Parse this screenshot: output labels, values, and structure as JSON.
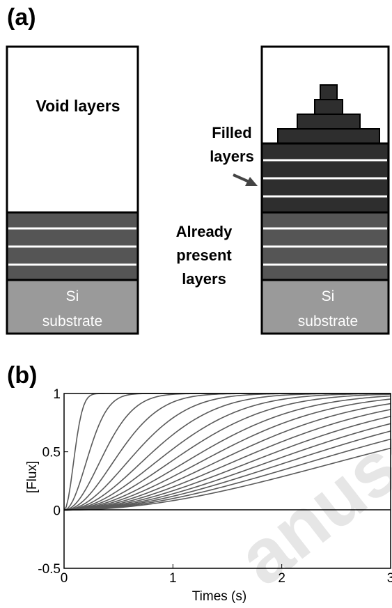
{
  "panel_a": {
    "label": "(a)",
    "left_stack": {
      "void_label": "Void layers",
      "substrate_line1": "Si",
      "substrate_line2": "substrate"
    },
    "right_stack": {
      "substrate_line1": "Si",
      "substrate_line2": "substrate"
    },
    "annotations": {
      "filled_line1": "Filled",
      "filled_line2": "layers",
      "present_line1": "Already",
      "present_line2": "present",
      "present_line3": "layers"
    },
    "colors": {
      "layer": "#555555",
      "filled": "#2e2e2e",
      "substrate": "#9a9a9a",
      "separator": "#ffffff",
      "outline": "#000000"
    }
  },
  "panel_b": {
    "label": "(b)",
    "watermark": "anusc"
  },
  "chart_data": {
    "type": "line",
    "xlabel": "Times (s)",
    "ylabel": "[Flux]",
    "xlim": [
      0,
      3
    ],
    "ylim": [
      -0.5,
      1
    ],
    "xticks": [
      "0",
      "1",
      "2",
      "3"
    ],
    "yticks": [
      "1",
      "0.5",
      "0",
      "-0.5"
    ],
    "grid": false,
    "series_model": "flux = 1 - exp(-(t/tau)^2), one curve per layer",
    "tau_values": [
      0.12,
      0.28,
      0.45,
      0.62,
      0.8,
      0.98,
      1.16,
      1.34,
      1.53,
      1.72,
      1.92,
      2.13,
      2.35,
      2.58,
      2.82,
      3.1,
      3.45
    ],
    "baseline": 0,
    "line_color": "#5a5a5a"
  }
}
